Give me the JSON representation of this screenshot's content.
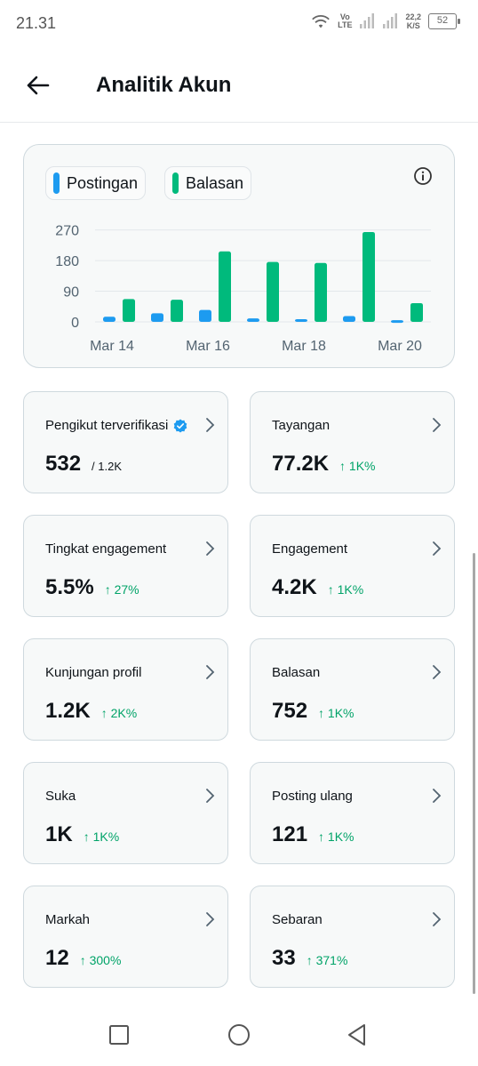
{
  "status_bar": {
    "time": "21.31",
    "volte_top": "Vo",
    "volte_bottom": "LTE",
    "speed_value": "22,2",
    "speed_unit": "K/S",
    "battery": "52"
  },
  "header": {
    "title": "Analitik Akun",
    "back_icon": "arrow-left-icon"
  },
  "chart_card": {
    "legend": [
      {
        "label": "Postingan",
        "color": "#1d9bf0"
      },
      {
        "label": "Balasan",
        "color": "#00ba7c"
      }
    ],
    "info_icon": "info-icon"
  },
  "chart_data": {
    "type": "bar",
    "categories": [
      "Mar 14",
      "Mar 15",
      "Mar 16",
      "Mar 17",
      "Mar 18",
      "Mar 19",
      "Mar 20"
    ],
    "x_tick_labels": [
      "Mar 14",
      "Mar 16",
      "Mar 18",
      "Mar 20"
    ],
    "series": [
      {
        "name": "Postingan",
        "color": "#1d9bf0",
        "values": [
          15,
          25,
          35,
          10,
          8,
          17,
          5
        ]
      },
      {
        "name": "Balasan",
        "color": "#00ba7c",
        "values": [
          67,
          65,
          207,
          176,
          173,
          264,
          55
        ]
      }
    ],
    "yticks": [
      0,
      90,
      180,
      270
    ],
    "ylim": [
      0,
      290
    ],
    "grid": true
  },
  "metrics": [
    {
      "label": "Pengikut terverifikasi",
      "value": "532",
      "sub": "/ 1.2K",
      "change": "",
      "verified": true
    },
    {
      "label": "Tayangan",
      "value": "77.2K",
      "sub": "",
      "change": "↑ 1K%"
    },
    {
      "label": "Tingkat engagement",
      "value": "5.5%",
      "sub": "",
      "change": "↑ 27%"
    },
    {
      "label": "Engagement",
      "value": "4.2K",
      "sub": "",
      "change": "↑ 1K%"
    },
    {
      "label": "Kunjungan profil",
      "value": "1.2K",
      "sub": "",
      "change": "↑ 2K%"
    },
    {
      "label": "Balasan",
      "value": "752",
      "sub": "",
      "change": "↑ 1K%"
    },
    {
      "label": "Suka",
      "value": "1K",
      "sub": "",
      "change": "↑ 1K%"
    },
    {
      "label": "Posting ulang",
      "value": "121",
      "sub": "",
      "change": "↑ 1K%"
    },
    {
      "label": "Markah",
      "value": "12",
      "sub": "",
      "change": "↑ 300%"
    },
    {
      "label": "Sebaran",
      "value": "33",
      "sub": "",
      "change": "↑ 371%"
    }
  ]
}
